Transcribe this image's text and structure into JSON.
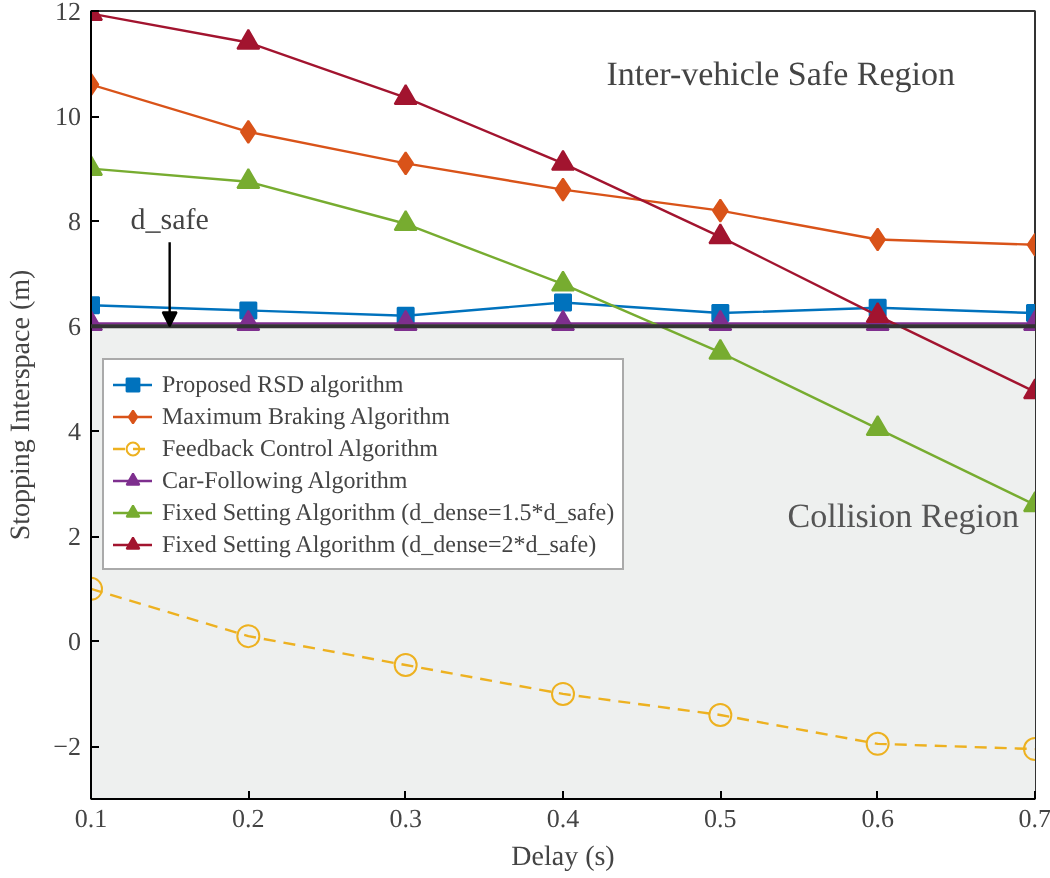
{
  "chart_data": {
    "type": "line",
    "xlabel": "Delay (s)",
    "ylabel": "Stopping Interspace (m)",
    "x": [
      0.1,
      0.2,
      0.3,
      0.4,
      0.5,
      0.6,
      0.7
    ],
    "xlim": [
      0.1,
      0.7
    ],
    "xticks": [
      0.1,
      0.2,
      0.3,
      0.4,
      0.5,
      0.6,
      0.7
    ],
    "ylim": [
      -3,
      12
    ],
    "yticks": [
      -2,
      0,
      2,
      4,
      6,
      8,
      10,
      12
    ],
    "grid": false,
    "legend": "left",
    "series": [
      {
        "name": "Proposed RSD algorithm",
        "color": "#0072bd",
        "marker": "square",
        "line_style": "solid",
        "values": [
          6.4,
          6.3,
          6.2,
          6.45,
          6.25,
          6.35,
          6.25
        ]
      },
      {
        "name": "Maximum Braking Algorithm",
        "color": "#d95319",
        "marker": "diamond",
        "line_style": "solid",
        "values": [
          10.6,
          9.7,
          9.1,
          8.6,
          8.2,
          7.65,
          7.55
        ]
      },
      {
        "name": "Feedback Control Algorithm",
        "color": "#edb120",
        "marker": "circle",
        "line_style": "dashed",
        "values": [
          1.0,
          0.1,
          -0.45,
          -1.0,
          -1.4,
          -1.95,
          -2.05
        ]
      },
      {
        "name": "Car-Following Algorithm",
        "color": "#7e2f8e",
        "marker": "triangle",
        "line_style": "solid",
        "values": [
          6.05,
          6.05,
          6.05,
          6.05,
          6.05,
          6.05,
          6.05
        ]
      },
      {
        "name": "Fixed Setting Algorithm (d_dense=1.5*d_safe)",
        "color": "#77ac30",
        "marker": "triangle",
        "line_style": "solid",
        "values": [
          9.0,
          8.75,
          7.95,
          6.8,
          5.5,
          4.05,
          2.6
        ]
      },
      {
        "name": "Fixed Setting Algorithm (d_dense=2*d_safe)",
        "color": "#a2142f",
        "marker": "triangle",
        "line_style": "solid",
        "values": [
          11.95,
          11.4,
          10.35,
          9.1,
          7.7,
          6.2,
          4.75
        ]
      }
    ],
    "ref_lines": [
      {
        "axis": "y",
        "value": 6,
        "color": "#333333"
      }
    ],
    "bands": [
      {
        "axis": "y",
        "from": -3,
        "to": 6,
        "label": "Collision Region",
        "color": "#eef0ef"
      }
    ],
    "annotations": [
      "Inter-vehicle Safe Region",
      {
        "text": "d_safe",
        "x": 0.15,
        "y": 6
      }
    ]
  }
}
